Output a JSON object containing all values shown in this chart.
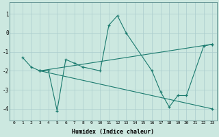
{
  "xlabel": "Humidex (Indice chaleur)",
  "background_color": "#cce8e0",
  "grid_color": "#aacccc",
  "line_color": "#1a7a6e",
  "xlim": [
    -0.5,
    23.5
  ],
  "ylim": [
    -4.6,
    1.6
  ],
  "xticks": [
    0,
    1,
    2,
    3,
    4,
    5,
    6,
    7,
    8,
    9,
    10,
    11,
    12,
    13,
    14,
    15,
    16,
    17,
    18,
    19,
    20,
    21,
    22,
    23
  ],
  "ytick_vals": [
    -4,
    -3,
    -2,
    -1,
    0,
    1
  ],
  "series": [
    {
      "x": [
        1,
        2,
        3,
        4,
        5,
        6,
        7,
        8,
        10,
        11,
        12,
        13,
        16,
        17,
        18,
        19,
        20,
        22,
        23
      ],
      "y": [
        -1.3,
        -1.8,
        -2.0,
        -2.0,
        -4.1,
        -1.4,
        -1.6,
        -1.8,
        -2.0,
        0.4,
        0.9,
        0.0,
        -2.0,
        -3.1,
        -3.9,
        -3.3,
        -3.3,
        -0.7,
        -0.6
      ]
    },
    {
      "x": [
        3,
        23
      ],
      "y": [
        -2.0,
        -0.6
      ]
    },
    {
      "x": [
        3,
        23
      ],
      "y": [
        -2.0,
        -4.0
      ]
    }
  ]
}
